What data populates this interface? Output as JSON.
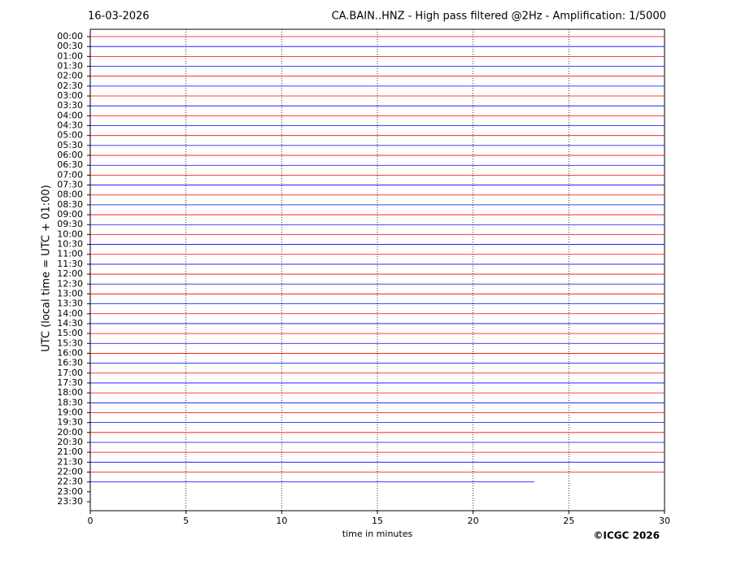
{
  "chart_data": {
    "type": "helicorder",
    "date": "16-03-2026",
    "title": "CA.BAIN..HNZ - High pass filtered @2Hz - Amplification: 1/5000",
    "ylabel": "UTC (local time = UTC + 01:00)",
    "xlabel": "time in minutes",
    "credit": "©ICGC 2026",
    "categories": [
      "00:00",
      "00:30",
      "01:00",
      "01:30",
      "02:00",
      "02:30",
      "03:00",
      "03:30",
      "04:00",
      "04:30",
      "05:00",
      "05:30",
      "06:00",
      "06:30",
      "07:00",
      "07:30",
      "08:00",
      "08:30",
      "09:00",
      "09:30",
      "10:00",
      "10:30",
      "11:00",
      "11:30",
      "12:00",
      "12:30",
      "13:00",
      "13:30",
      "14:00",
      "14:30",
      "15:00",
      "15:30",
      "16:00",
      "16:30",
      "17:00",
      "17:30",
      "18:00",
      "18:30",
      "19:00",
      "19:30",
      "20:00",
      "20:30",
      "21:00",
      "21:30",
      "22:00",
      "22:30",
      "23:00",
      "23:30"
    ],
    "values": [
      30,
      30,
      30,
      30,
      30,
      30,
      30,
      30,
      30,
      30,
      30,
      30,
      30,
      30,
      30,
      30,
      30,
      30,
      30,
      30,
      30,
      30,
      30,
      30,
      30,
      30,
      30,
      30,
      30,
      30,
      30,
      30,
      30,
      30,
      30,
      30,
      30,
      30,
      30,
      30,
      30,
      30,
      30,
      30,
      30,
      23.2,
      null,
      null
    ],
    "colors": [
      "#ff0000",
      "#0000ff"
    ],
    "xlim": [
      0,
      30
    ],
    "xticks": [
      0,
      5,
      10,
      15,
      20,
      25,
      30
    ],
    "grid": true
  }
}
